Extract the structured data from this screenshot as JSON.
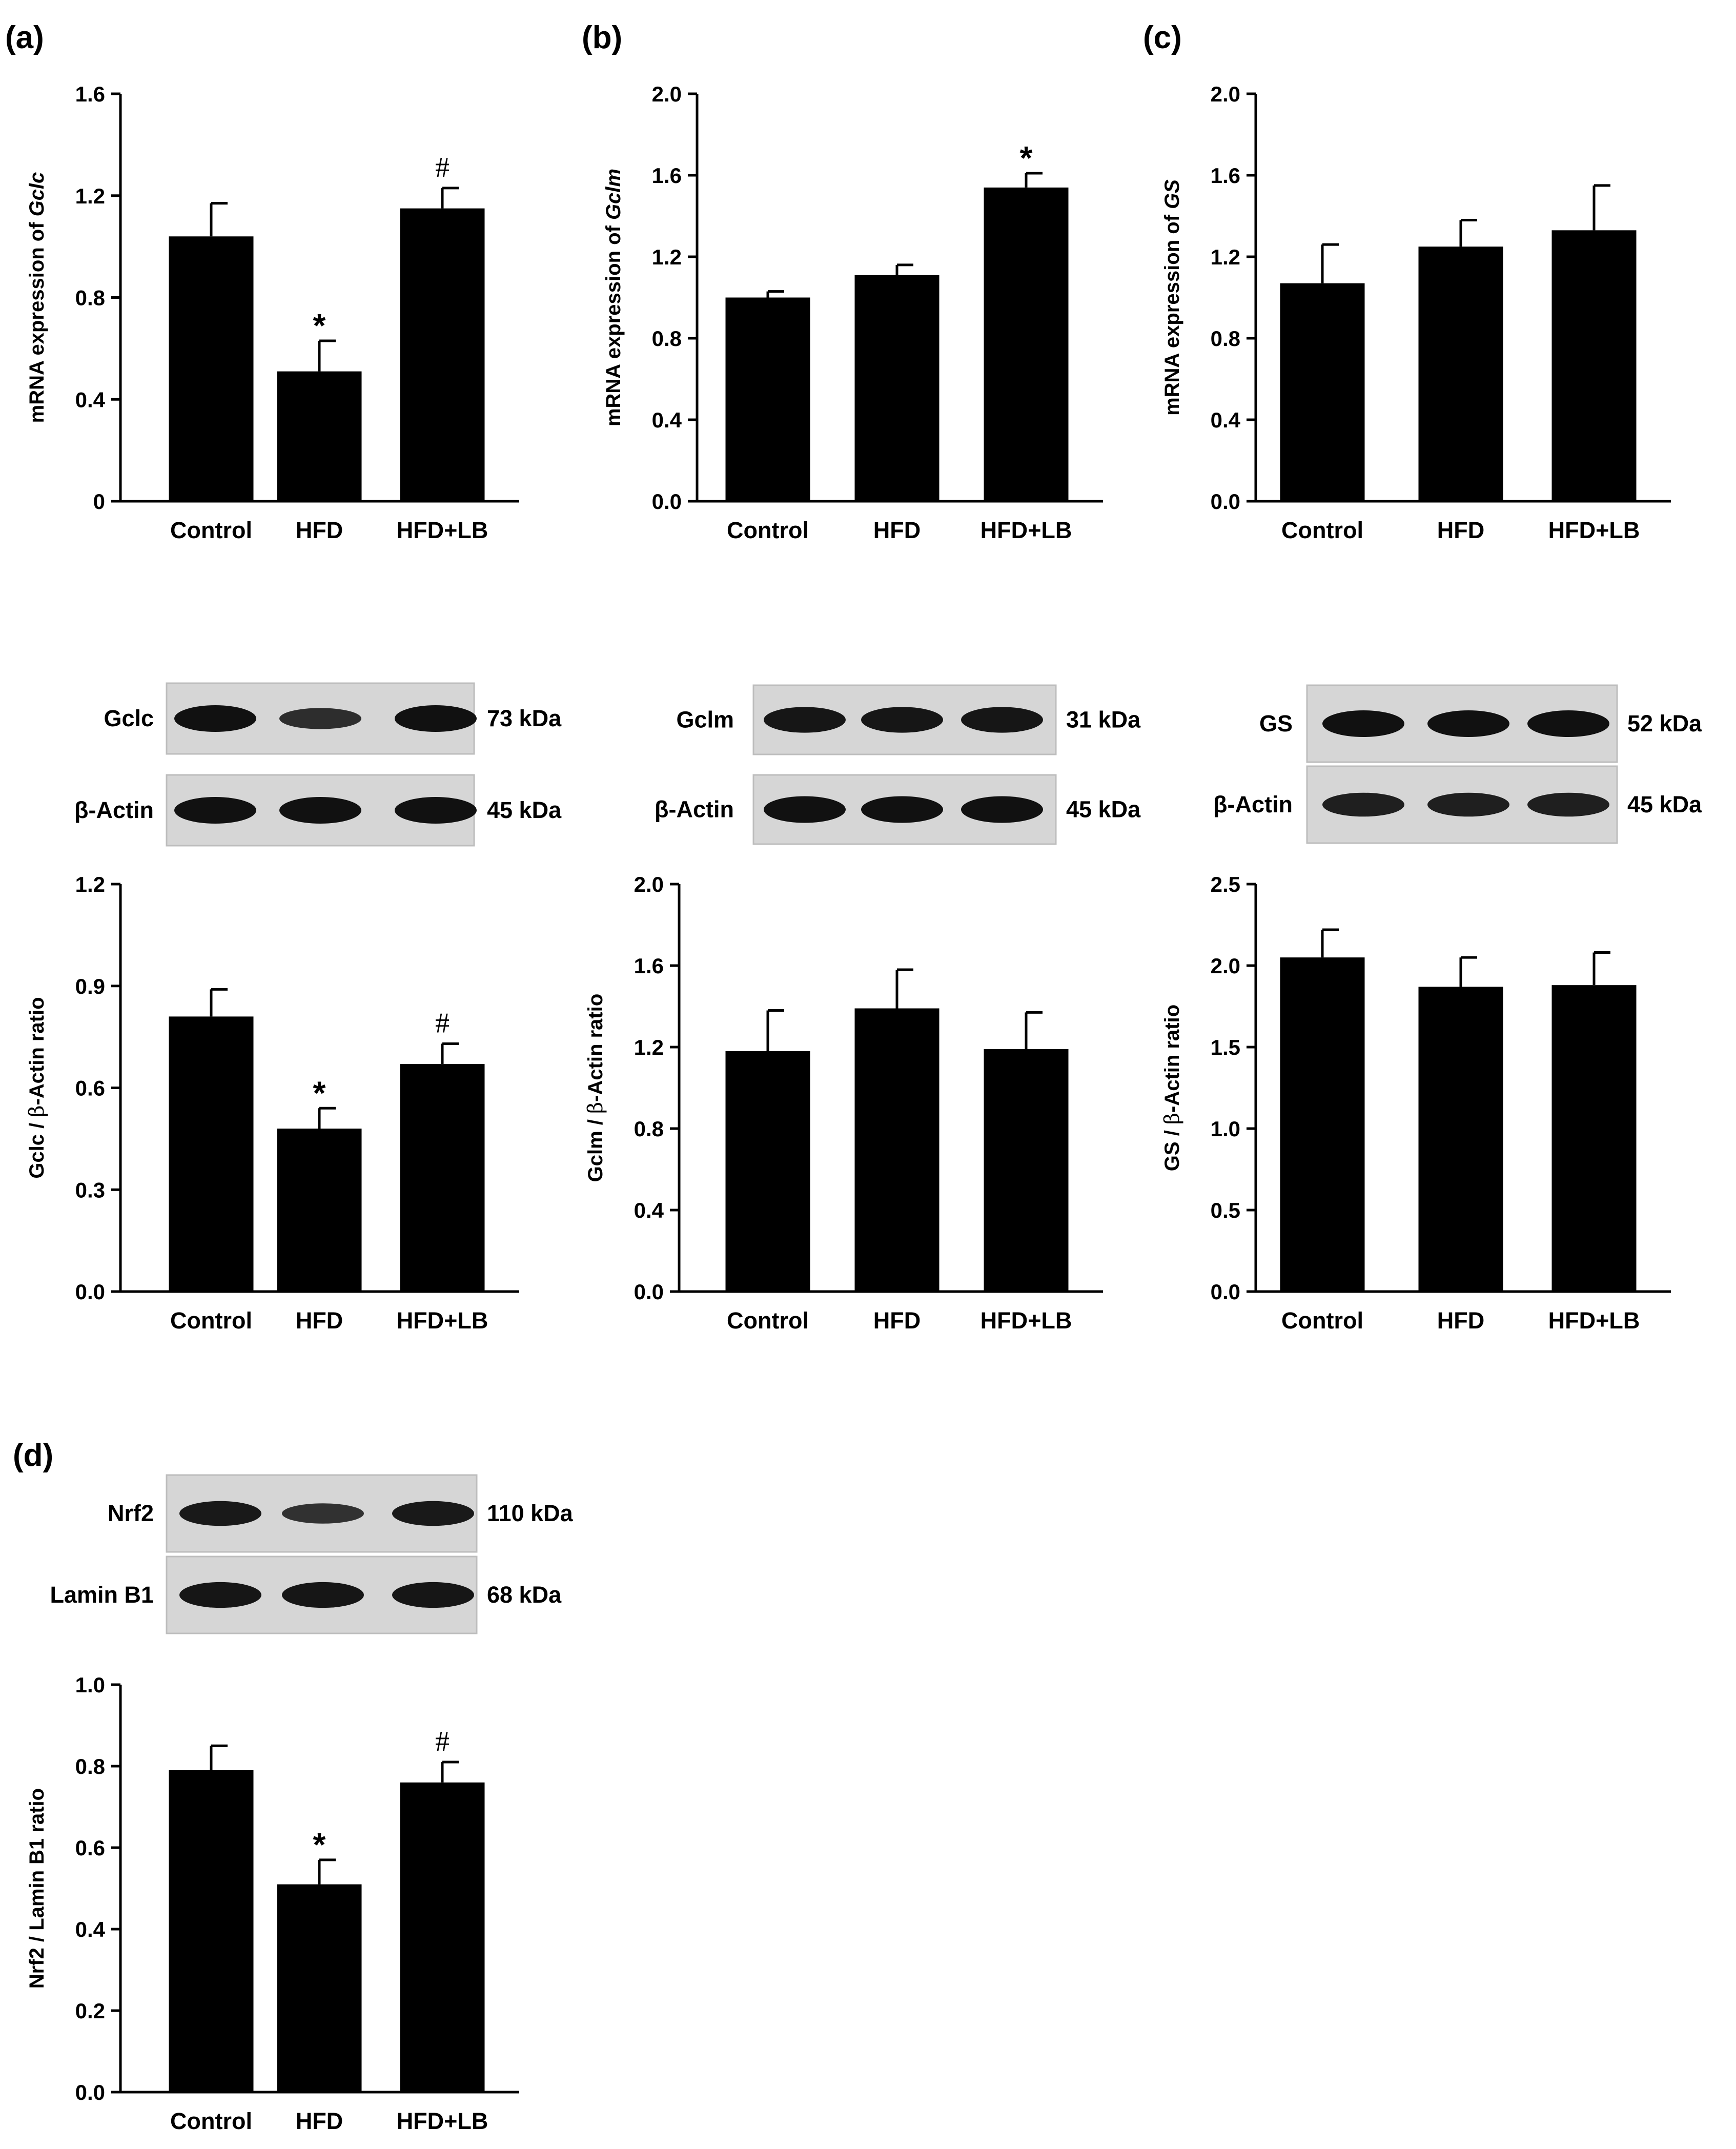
{
  "panel_labels": [
    "(a)",
    "(b)",
    "(c)",
    "(d)"
  ],
  "chart_data": [
    {
      "id": "a_mrna",
      "type": "bar",
      "panel": "(a)",
      "categories": [
        "Control",
        "HFD",
        "HFD+LB"
      ],
      "values": [
        1.04,
        0.51,
        1.15
      ],
      "errors": [
        0.13,
        0.12,
        0.08
      ],
      "ylabel_parts": [
        "mRNA expression of ",
        "Gclc"
      ],
      "ylim": [
        0,
        1.6
      ],
      "yticks": [
        "0",
        "0.4",
        "0.8",
        "1.2",
        "1.6"
      ],
      "marks": [
        "",
        "*",
        "#"
      ]
    },
    {
      "id": "b_mrna",
      "type": "bar",
      "panel": "(b)",
      "categories": [
        "Control",
        "HFD",
        "HFD+LB"
      ],
      "values": [
        1.0,
        1.11,
        1.54
      ],
      "errors": [
        0.03,
        0.05,
        0.07
      ],
      "ylabel_parts": [
        "mRNA expression of ",
        "Gclm"
      ],
      "ylim": [
        0,
        2.0
      ],
      "yticks": [
        "0.0",
        "0.4",
        "0.8",
        "1.2",
        "1.6",
        "2.0"
      ],
      "marks": [
        "",
        "",
        "*"
      ]
    },
    {
      "id": "c_mrna",
      "type": "bar",
      "panel": "(c)",
      "categories": [
        "Control",
        "HFD",
        "HFD+LB"
      ],
      "values": [
        1.07,
        1.25,
        1.33
      ],
      "errors": [
        0.19,
        0.13,
        0.22
      ],
      "ylabel_parts": [
        "mRNA expression of ",
        "GS"
      ],
      "ylim": [
        0,
        2.0
      ],
      "yticks": [
        "0.0",
        "0.4",
        "0.8",
        "1.2",
        "1.6",
        "2.0"
      ],
      "marks": [
        "",
        "",
        ""
      ]
    },
    {
      "id": "a_prot",
      "type": "bar",
      "panel": "(a)",
      "categories": [
        "Control",
        "HFD",
        "HFD+LB"
      ],
      "values": [
        0.81,
        0.48,
        0.67
      ],
      "errors": [
        0.08,
        0.06,
        0.06
      ],
      "ylabel_parts": [
        "Gclc / ",
        "β",
        "-Actin ratio"
      ],
      "ylim": [
        0,
        1.2
      ],
      "yticks": [
        "0.0",
        "0.3",
        "0.6",
        "0.9",
        "1.2"
      ],
      "marks": [
        "",
        "*",
        "#"
      ]
    },
    {
      "id": "b_prot",
      "type": "bar",
      "panel": "(b)",
      "categories": [
        "Control",
        "HFD",
        "HFD+LB"
      ],
      "values": [
        1.18,
        1.39,
        1.19
      ],
      "errors": [
        0.2,
        0.19,
        0.18
      ],
      "ylabel_parts": [
        "Gclm / ",
        "β",
        "-Actin ratio"
      ],
      "ylim": [
        0,
        2.0
      ],
      "yticks": [
        "0.0",
        "0.4",
        "0.8",
        "1.2",
        "1.6",
        "2.0"
      ],
      "marks": [
        "",
        "",
        ""
      ]
    },
    {
      "id": "c_prot",
      "type": "bar",
      "panel": "(c)",
      "categories": [
        "Control",
        "HFD",
        "HFD+LB"
      ],
      "values": [
        2.05,
        1.87,
        1.88
      ],
      "errors": [
        0.17,
        0.18,
        0.2
      ],
      "ylabel_parts": [
        "GS / ",
        "β",
        "-Actin ratio"
      ],
      "ylim": [
        0,
        2.5
      ],
      "yticks": [
        "0.0",
        "0.5",
        "1.0",
        "1.5",
        "2.0",
        "2.5"
      ],
      "marks": [
        "",
        "",
        ""
      ]
    },
    {
      "id": "d_prot",
      "type": "bar",
      "panel": "(d)",
      "categories": [
        "Control",
        "HFD",
        "HFD+LB"
      ],
      "values": [
        0.79,
        0.51,
        0.76
      ],
      "errors": [
        0.06,
        0.06,
        0.05
      ],
      "ylabel_parts": [
        "Nrf2 / Lamin B1 ratio"
      ],
      "ylim": [
        0,
        1.0
      ],
      "yticks": [
        "0.0",
        "0.2",
        "0.4",
        "0.6",
        "0.8",
        "1.0"
      ],
      "marks": [
        "",
        "*",
        "#"
      ]
    }
  ],
  "blots": [
    {
      "id": "a_blot",
      "panel": "(a)",
      "rows": [
        {
          "protein": "Gclc",
          "size": "73 kDa",
          "band_intensity": [
            1.0,
            0.7,
            1.0
          ]
        },
        {
          "protein": "β-Actin",
          "size": "45 kDa",
          "band_intensity": [
            1.0,
            1.0,
            1.0
          ]
        }
      ]
    },
    {
      "id": "b_blot",
      "panel": "(b)",
      "rows": [
        {
          "protein": "Gclm",
          "size": "31 kDa",
          "band_intensity": [
            0.95,
            0.95,
            0.95
          ]
        },
        {
          "protein": "β-Actin",
          "size": "45 kDa",
          "band_intensity": [
            1.0,
            1.0,
            1.0
          ]
        }
      ]
    },
    {
      "id": "c_blot",
      "panel": "(c)",
      "rows": [
        {
          "protein": "GS",
          "size": "52 kDa",
          "band_intensity": [
            1.0,
            1.0,
            1.0
          ]
        },
        {
          "protein": "β-Actin",
          "size": "45 kDa",
          "band_intensity": [
            0.85,
            0.85,
            0.85
          ]
        }
      ]
    },
    {
      "id": "d_blot",
      "panel": "(d)",
      "rows": [
        {
          "protein": "Nrf2",
          "size": "110 kDa",
          "band_intensity": [
            0.9,
            0.65,
            0.9
          ]
        },
        {
          "protein": "Lamin B1",
          "size": "68 kDa",
          "band_intensity": [
            0.95,
            0.95,
            0.95
          ]
        }
      ]
    }
  ]
}
